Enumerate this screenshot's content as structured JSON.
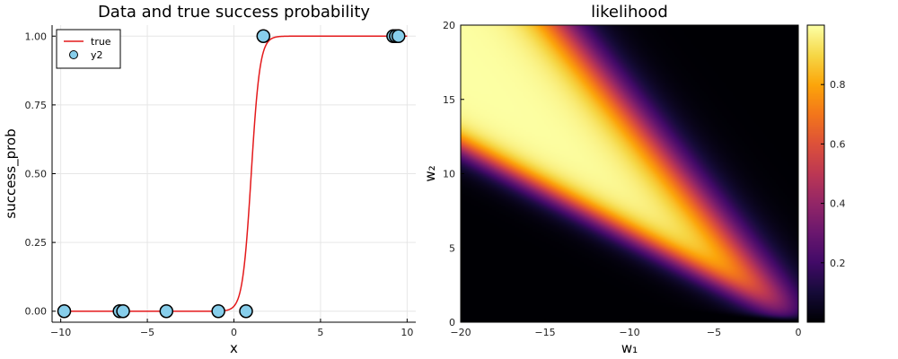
{
  "chart_data": [
    {
      "type": "line+scatter",
      "title": "Data and true success probability",
      "xlabel": "x",
      "ylabel": "success_prob",
      "xlim": [
        -10.5,
        10.5
      ],
      "ylim": [
        -0.04,
        1.04
      ],
      "xticks": [
        -10,
        -5,
        0,
        5,
        10
      ],
      "xtick_labels": [
        "−10",
        "−5",
        "0",
        "5",
        "10"
      ],
      "yticks": [
        0.0,
        0.25,
        0.5,
        0.75,
        1.0
      ],
      "ytick_labels": [
        "0.00",
        "0.25",
        "0.50",
        "0.75",
        "1.00"
      ],
      "grid": true,
      "legend_position": "top-left",
      "series": [
        {
          "name": "true",
          "kind": "line",
          "color": "#e41a1c",
          "model": "logistic",
          "midpoint": 1.0,
          "steepness": 4.0,
          "x_range": [
            -10,
            10
          ]
        },
        {
          "name": "y2",
          "kind": "scatter",
          "color": "#87ceeb",
          "points": [
            {
              "x": -9.8,
              "y": 0
            },
            {
              "x": -6.6,
              "y": 0
            },
            {
              "x": -6.4,
              "y": 0
            },
            {
              "x": -3.9,
              "y": 0
            },
            {
              "x": -0.9,
              "y": 0
            },
            {
              "x": 0.7,
              "y": 0
            },
            {
              "x": 1.7,
              "y": 1
            },
            {
              "x": 9.2,
              "y": 1
            },
            {
              "x": 9.35,
              "y": 1
            },
            {
              "x": 9.5,
              "y": 1
            }
          ]
        }
      ]
    },
    {
      "type": "heatmap",
      "title": "likelihood",
      "xlabel": "w₁",
      "ylabel": "w₂",
      "xlim": [
        -20,
        0
      ],
      "ylim": [
        0,
        20
      ],
      "xticks": [
        -20,
        -15,
        -10,
        -5,
        0
      ],
      "xtick_labels": [
        "−20",
        "−15",
        "−10",
        "−5",
        "0"
      ],
      "yticks": [
        0,
        5,
        10,
        15,
        20
      ],
      "ytick_labels": [
        "0",
        "5",
        "10",
        "15",
        "20"
      ],
      "colormap": "inferno",
      "colorbar_range": [
        0.0,
        1.0
      ],
      "colorbar_ticks": [
        0.2,
        0.4,
        0.6,
        0.8
      ],
      "colorbar_tick_labels": [
        "0.2",
        "0.4",
        "0.6",
        "0.8"
      ],
      "peak_ridge": "w₂ ≈ −w₁/0.95 (ridge from upper-left to origin)",
      "max_value": 1.0
    }
  ]
}
